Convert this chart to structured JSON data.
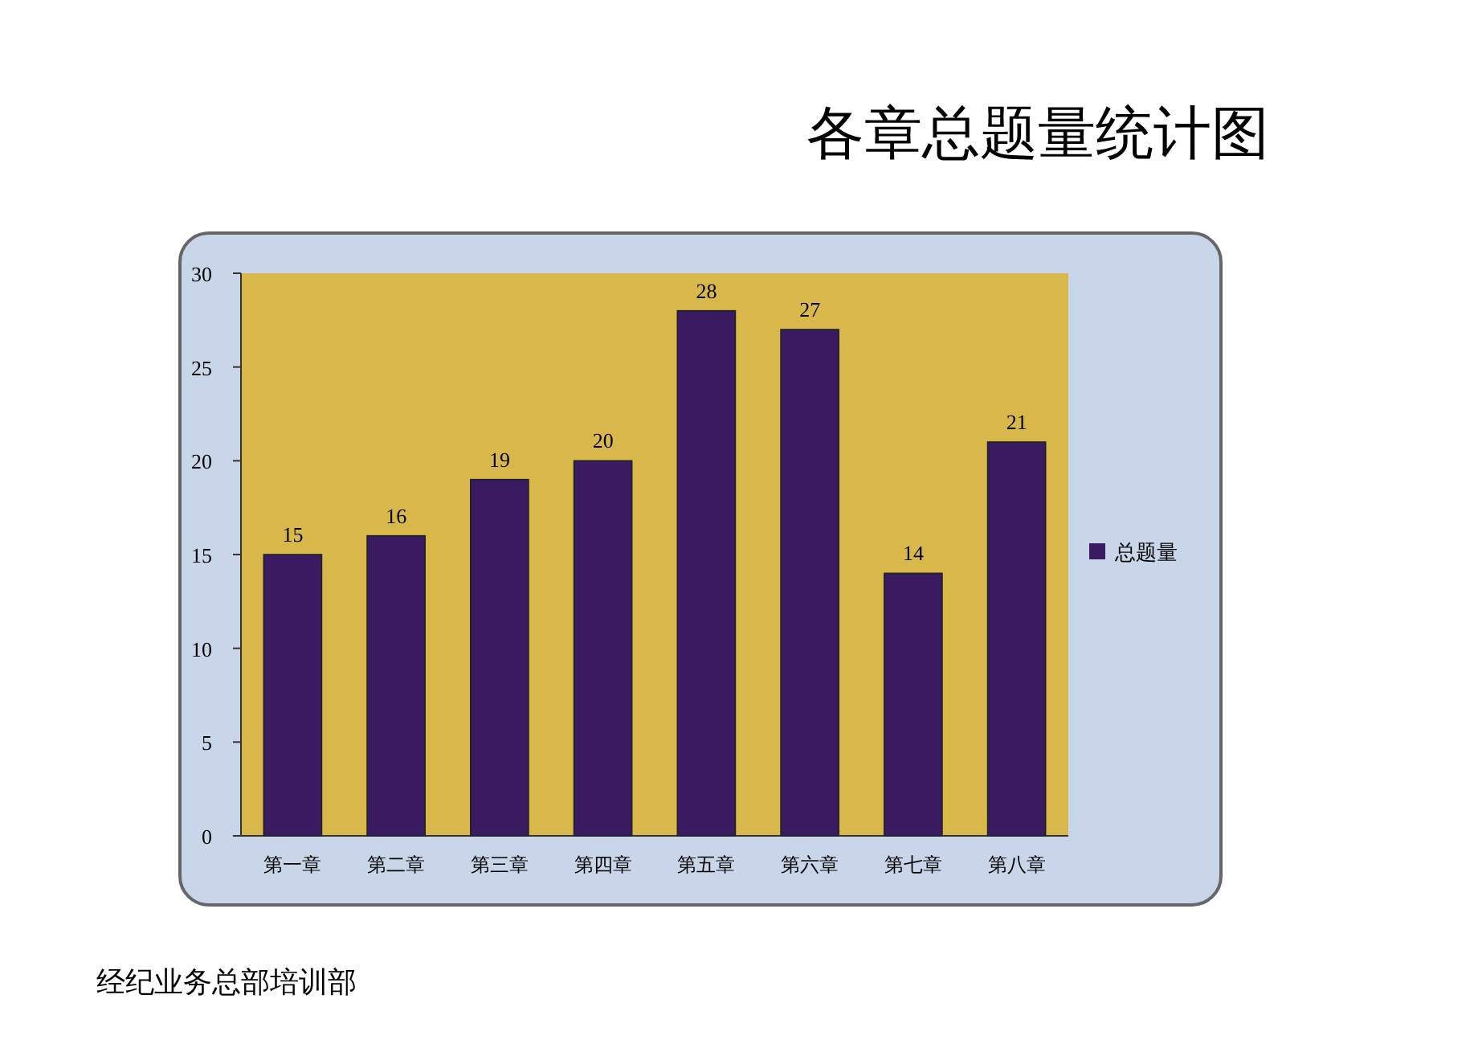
{
  "chart_data": {
    "type": "bar",
    "title": "各章总题量统计图",
    "categories": [
      "第一章",
      "第二章",
      "第三章",
      "第四章",
      "第五章",
      "第六章",
      "第七章",
      "第八章"
    ],
    "series": [
      {
        "name": "总题量",
        "color": "#3a1a60",
        "values": [
          15,
          16,
          19,
          20,
          28,
          27,
          14,
          21
        ]
      }
    ],
    "ylim": [
      0,
      30
    ],
    "yticks": [
      0,
      5,
      10,
      15,
      20,
      25,
      30
    ],
    "data_labels": true,
    "legend": "right",
    "annotations": [
      "经纪业务总部培训部"
    ]
  }
}
